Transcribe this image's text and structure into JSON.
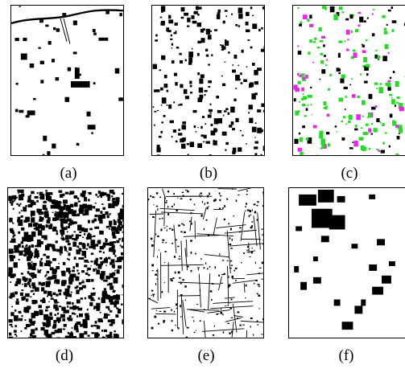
{
  "figure": {
    "panels": [
      {
        "id": "a",
        "caption": "(a)",
        "description": "sparse black building blobs, river and road lines at top-left",
        "density": "sparse",
        "colors": [
          "#000000"
        ]
      },
      {
        "id": "b",
        "caption": "(b)",
        "description": "dense scattered black patches",
        "density": "medium",
        "colors": [
          "#000000"
        ]
      },
      {
        "id": "c",
        "caption": "(c)",
        "description": "overlay of green, magenta and black patches",
        "density": "medium",
        "colors": [
          "#000000",
          "#22dd22",
          "#ee22ee"
        ]
      },
      {
        "id": "d",
        "caption": "(d)",
        "description": "very dense black texture over whole area",
        "density": "very-dense",
        "colors": [
          "#000000"
        ]
      },
      {
        "id": "e",
        "caption": "(e)",
        "description": "thin black road-like network outlines",
        "density": "network",
        "colors": [
          "#000000"
        ]
      },
      {
        "id": "f",
        "caption": "(f)",
        "description": "few large black blocks, top-left cluster",
        "density": "blocks",
        "colors": [
          "#000000"
        ]
      }
    ]
  }
}
